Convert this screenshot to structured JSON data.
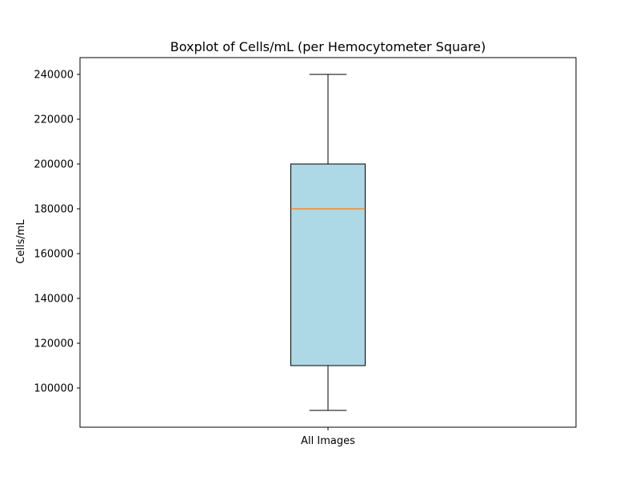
{
  "chart_data": {
    "type": "box",
    "title": "Boxplot of Cells/mL (per Hemocytometer Square)",
    "xlabel": "",
    "ylabel": "Cells/mL",
    "categories": [
      "All Images"
    ],
    "boxes": [
      {
        "label": "All Images",
        "whisker_low": 90000,
        "q1": 110000,
        "median": 180000,
        "q3": 200000,
        "whisker_high": 240000
      }
    ],
    "yticks": [
      100000,
      120000,
      140000,
      160000,
      180000,
      200000,
      220000,
      240000
    ],
    "ytick_labels": [
      "100000",
      "120000",
      "140000",
      "160000",
      "180000",
      "200000",
      "220000",
      "240000"
    ],
    "ylim": [
      82500,
      247500
    ],
    "grid": false,
    "colors": {
      "box_fill": "#add8e6",
      "median": "#ff7f0e",
      "lines": "#000000"
    }
  }
}
